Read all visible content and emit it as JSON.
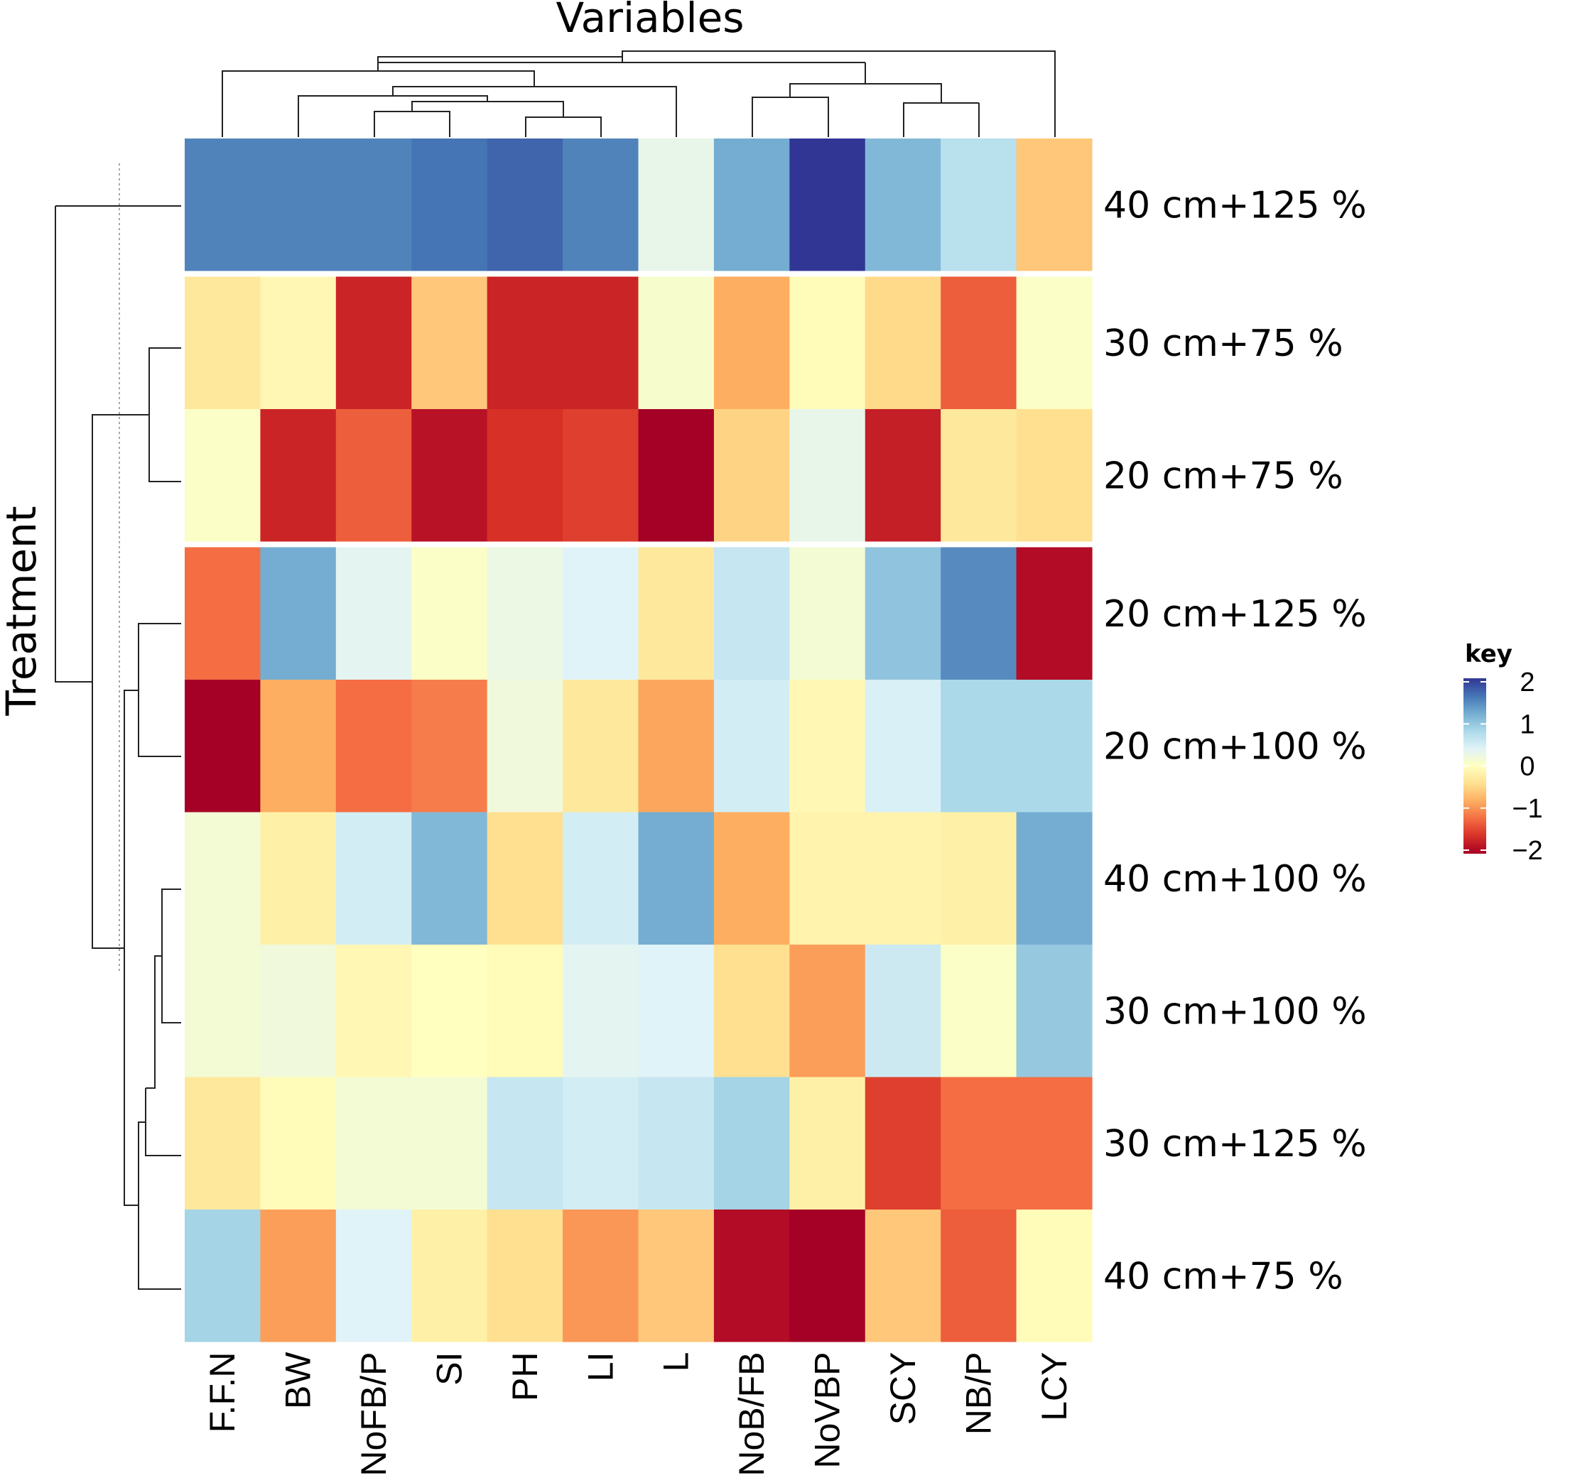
{
  "chart_data": {
    "type": "heatmap",
    "title": "Variables",
    "xlabel": "Variables",
    "ylabel": "Treatment",
    "columns": [
      "F.F.N",
      "BW",
      "NoFB/P",
      "SI",
      "PH",
      "LI",
      "L",
      "NoB/FB",
      "NoVBP",
      "SCY",
      "NB/P",
      "LCY"
    ],
    "rows": [
      "40 cm+125 %",
      "30 cm+75 %",
      "20 cm+75 %",
      "20 cm+125 %",
      "20 cm+100 %",
      "40 cm+100 %",
      "30 cm+100 %",
      "30 cm+125 %",
      "40 cm+75 %"
    ],
    "values": [
      [
        1.5,
        1.5,
        1.5,
        1.6,
        1.7,
        1.5,
        0.3,
        1.2,
        2.2,
        1.1,
        0.7,
        -0.6
      ],
      [
        -0.3,
        -0.1,
        -1.7,
        -0.6,
        -1.7,
        -1.7,
        0.1,
        -0.8,
        -0.05,
        -0.45,
        -1.3,
        0.05
      ],
      [
        0.05,
        -1.7,
        -1.3,
        -1.85,
        -1.6,
        -1.5,
        -2.2,
        -0.5,
        0.3,
        -1.75,
        -0.3,
        -0.4
      ],
      [
        -1.2,
        1.2,
        0.35,
        0.05,
        0.25,
        0.4,
        -0.3,
        0.6,
        0.15,
        1.0,
        1.45,
        -1.9
      ],
      [
        -2.0,
        -0.8,
        -1.2,
        -1.1,
        0.2,
        -0.3,
        -0.85,
        0.5,
        -0.1,
        0.45,
        0.8,
        0.8
      ],
      [
        0.15,
        -0.2,
        0.5,
        1.1,
        -0.4,
        0.5,
        1.2,
        -0.8,
        -0.15,
        -0.15,
        -0.2,
        1.2
      ],
      [
        0.15,
        0.2,
        -0.1,
        0.0,
        -0.05,
        0.35,
        0.4,
        -0.4,
        -0.9,
        0.55,
        0.05,
        0.95
      ],
      [
        -0.3,
        -0.05,
        0.15,
        0.15,
        0.6,
        0.5,
        0.6,
        0.85,
        -0.2,
        -1.5,
        -1.2,
        -1.2
      ],
      [
        0.85,
        -0.9,
        0.4,
        -0.2,
        -0.4,
        -0.95,
        -0.6,
        -1.9,
        -2.1,
        -0.6,
        -1.3,
        -0.05
      ]
    ],
    "colorbar": {
      "title": "key",
      "range": [
        -2,
        2
      ],
      "ticks": [
        "2",
        "1",
        "0",
        "−1",
        "−2"
      ]
    }
  },
  "colors": {
    "scale": [
      "#a50026",
      "#d73027",
      "#f46d43",
      "#fdae61",
      "#fee090",
      "#ffffbf",
      "#e0f3f8",
      "#abd9e9",
      "#74add1",
      "#4575b4",
      "#313695"
    ]
  }
}
